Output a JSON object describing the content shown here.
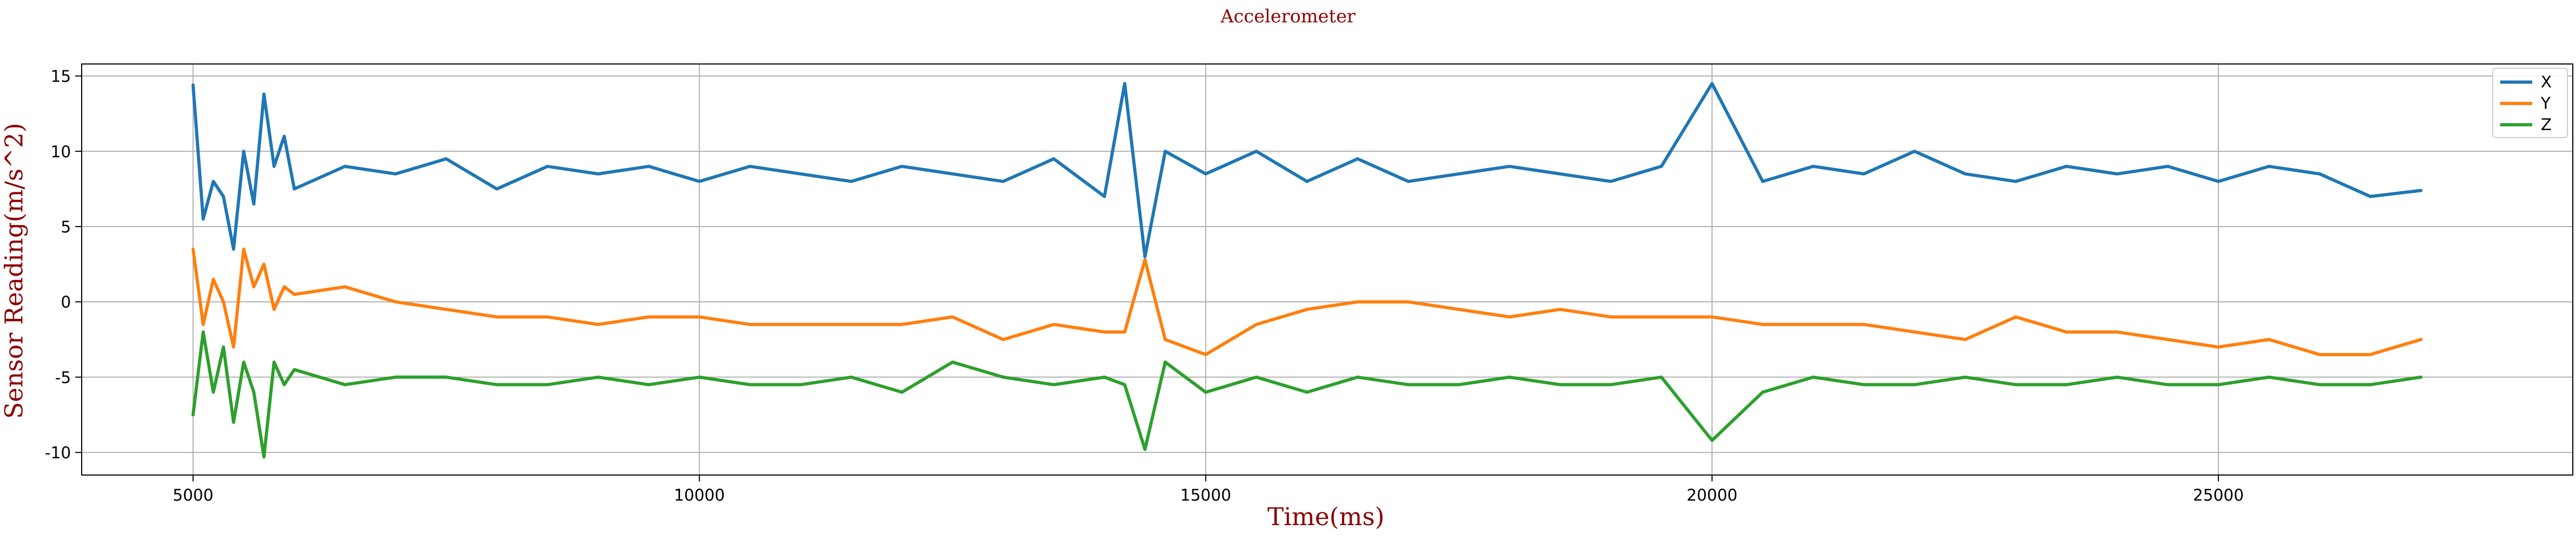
{
  "chart_data": {
    "type": "line",
    "title": "Accelerometer",
    "xlabel": "Time(ms)",
    "ylabel": "Sensor Reading(m/s^2)",
    "xlim": [
      3900,
      28500
    ],
    "ylim": [
      -11.5,
      15.8
    ],
    "xticks": [
      5000,
      10000,
      15000,
      20000,
      25000
    ],
    "yticks": [
      -10,
      -5,
      0,
      5,
      10,
      15
    ],
    "grid": true,
    "legend_position": "top-right",
    "colors": {
      "title": "#8b0000",
      "axis_label": "#8b0000",
      "grid": "#b0b0b0",
      "axes": "#000000"
    },
    "series": [
      {
        "name": "X",
        "color": "#1f77b4",
        "x": [
          5000,
          5100,
          5200,
          5300,
          5400,
          5500,
          5600,
          5700,
          5800,
          5900,
          6000,
          6500,
          7000,
          7500,
          8000,
          8500,
          9000,
          9500,
          10000,
          10500,
          11000,
          11500,
          12000,
          12500,
          13000,
          13500,
          14000,
          14200,
          14400,
          14600,
          15000,
          15500,
          16000,
          16500,
          17000,
          17500,
          18000,
          18500,
          19000,
          19500,
          20000,
          20500,
          21000,
          21500,
          22000,
          22500,
          23000,
          23500,
          24000,
          24500,
          25000,
          25500,
          26000,
          26500,
          27000
        ],
        "y": [
          14.4,
          5.5,
          8,
          7,
          3.5,
          10,
          6.5,
          13.8,
          9,
          11,
          7.5,
          9,
          8.5,
          9.5,
          7.5,
          9,
          8.5,
          9,
          8,
          9,
          8.5,
          8,
          9,
          8.5,
          8,
          9.5,
          7,
          14.5,
          3,
          10,
          8.5,
          10,
          8,
          9.5,
          8,
          8.5,
          9,
          8.5,
          8,
          9,
          14.5,
          8,
          9,
          8.5,
          10,
          8.5,
          8,
          9,
          8.5,
          9,
          8,
          9,
          8.5,
          7,
          7.4
        ]
      },
      {
        "name": "Y",
        "color": "#ff7f0e",
        "x": [
          5000,
          5100,
          5200,
          5300,
          5400,
          5500,
          5600,
          5700,
          5800,
          5900,
          6000,
          6500,
          7000,
          7500,
          8000,
          8500,
          9000,
          9500,
          10000,
          10500,
          11000,
          11500,
          12000,
          12500,
          13000,
          13500,
          14000,
          14200,
          14400,
          14600,
          15000,
          15500,
          16000,
          16500,
          17000,
          17500,
          18000,
          18500,
          19000,
          19500,
          20000,
          20500,
          21000,
          21500,
          22000,
          22500,
          23000,
          23500,
          24000,
          24500,
          25000,
          25500,
          26000,
          26500,
          27000
        ],
        "y": [
          3.5,
          -1.5,
          1.5,
          0,
          -3,
          3.5,
          1,
          2.5,
          -0.5,
          1,
          0.5,
          1,
          0,
          -0.5,
          -1,
          -1,
          -1.5,
          -1,
          -1,
          -1.5,
          -1.5,
          -1.5,
          -1.5,
          -1,
          -2.5,
          -1.5,
          -2,
          -2,
          2.8,
          -2.5,
          -3.5,
          -1.5,
          -0.5,
          0,
          0,
          -0.5,
          -1,
          -0.5,
          -1,
          -1,
          -1,
          -1.5,
          -1.5,
          -1.5,
          -2,
          -2.5,
          -1,
          -2,
          -2,
          -2.5,
          -3,
          -2.5,
          -3.5,
          -3.5,
          -2.5
        ]
      },
      {
        "name": "Z",
        "color": "#2ca02c",
        "x": [
          5000,
          5100,
          5200,
          5300,
          5400,
          5500,
          5600,
          5700,
          5800,
          5900,
          6000,
          6500,
          7000,
          7500,
          8000,
          8500,
          9000,
          9500,
          10000,
          10500,
          11000,
          11500,
          12000,
          12500,
          13000,
          13500,
          14000,
          14200,
          14400,
          14600,
          15000,
          15500,
          16000,
          16500,
          17000,
          17500,
          18000,
          18500,
          19000,
          19500,
          20000,
          20500,
          21000,
          21500,
          22000,
          22500,
          23000,
          23500,
          24000,
          24500,
          25000,
          25500,
          26000,
          26500,
          27000
        ],
        "y": [
          -7.5,
          -2,
          -6,
          -3,
          -8,
          -4,
          -6,
          -10.3,
          -4,
          -5.5,
          -4.5,
          -5.5,
          -5,
          -5,
          -5.5,
          -5.5,
          -5,
          -5.5,
          -5,
          -5.5,
          -5.5,
          -5,
          -6,
          -4,
          -5,
          -5.5,
          -5,
          -5.5,
          -9.8,
          -4,
          -6,
          -5,
          -6,
          -5,
          -5.5,
          -5.5,
          -5,
          -5.5,
          -5.5,
          -5,
          -9.2,
          -6,
          -5,
          -5.5,
          -5.5,
          -5,
          -5.5,
          -5.5,
          -5,
          -5.5,
          -5.5,
          -5,
          -5.5,
          -5.5,
          -5
        ]
      }
    ]
  }
}
